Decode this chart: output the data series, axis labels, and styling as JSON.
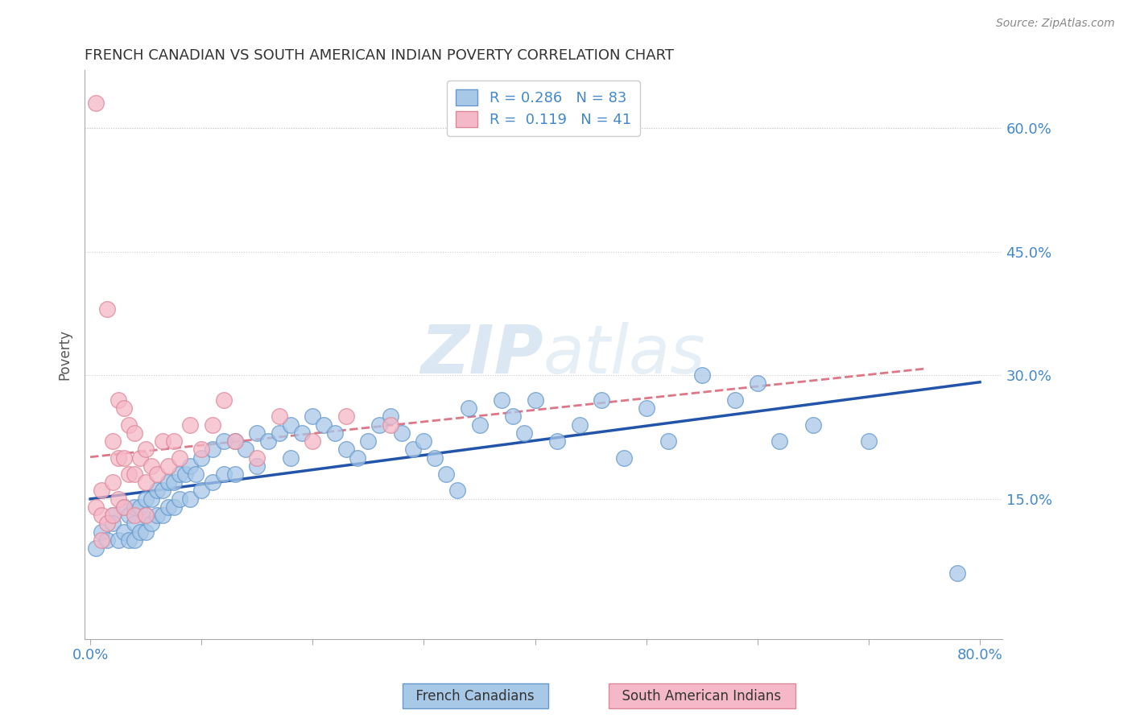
{
  "title": "FRENCH CANADIAN VS SOUTH AMERICAN INDIAN POVERTY CORRELATION CHART",
  "source_text": "Source: ZipAtlas.com",
  "ylabel": "Poverty",
  "xlabel_ticks_edge": [
    "0.0%",
    "80.0%"
  ],
  "xlabel_tick_positions": [
    0.0,
    0.1,
    0.2,
    0.3,
    0.4,
    0.5,
    0.6,
    0.7,
    0.8
  ],
  "ylabel_ticks": [
    "15.0%",
    "30.0%",
    "45.0%",
    "60.0%"
  ],
  "ylabel_vals": [
    0.15,
    0.3,
    0.45,
    0.6
  ],
  "xlim": [
    -0.005,
    0.82
  ],
  "ylim": [
    -0.02,
    0.67
  ],
  "watermark_zip": "ZIP",
  "watermark_atlas": "atlas",
  "blue_R": 0.286,
  "blue_N": 83,
  "pink_R": 0.119,
  "pink_N": 41,
  "blue_color": "#A8C8E8",
  "blue_edge_color": "#6699CC",
  "blue_line_color": "#2255AA",
  "pink_color": "#F5B8C8",
  "pink_edge_color": "#DD8899",
  "pink_line_color": "#DD7788",
  "legend_label_blue": "French Canadians",
  "legend_label_pink": "South American Indians",
  "title_color": "#333333",
  "axis_label_color": "#4488CC",
  "grid_color": "#CCCCCC",
  "background_color": "#FFFFFF",
  "blue_scatter_x": [
    0.005,
    0.01,
    0.015,
    0.02,
    0.02,
    0.025,
    0.03,
    0.03,
    0.035,
    0.035,
    0.04,
    0.04,
    0.04,
    0.045,
    0.045,
    0.05,
    0.05,
    0.05,
    0.055,
    0.055,
    0.06,
    0.06,
    0.065,
    0.065,
    0.07,
    0.07,
    0.075,
    0.075,
    0.08,
    0.08,
    0.085,
    0.09,
    0.09,
    0.095,
    0.1,
    0.1,
    0.11,
    0.11,
    0.12,
    0.12,
    0.13,
    0.13,
    0.14,
    0.15,
    0.15,
    0.16,
    0.17,
    0.18,
    0.18,
    0.19,
    0.2,
    0.21,
    0.22,
    0.23,
    0.24,
    0.25,
    0.26,
    0.27,
    0.28,
    0.29,
    0.3,
    0.31,
    0.32,
    0.33,
    0.34,
    0.35,
    0.37,
    0.38,
    0.39,
    0.4,
    0.42,
    0.44,
    0.46,
    0.48,
    0.5,
    0.52,
    0.55,
    0.58,
    0.6,
    0.62,
    0.65,
    0.7,
    0.78
  ],
  "blue_scatter_y": [
    0.09,
    0.11,
    0.1,
    0.13,
    0.12,
    0.1,
    0.14,
    0.11,
    0.13,
    0.1,
    0.14,
    0.12,
    0.1,
    0.14,
    0.11,
    0.15,
    0.13,
    0.11,
    0.15,
    0.12,
    0.16,
    0.13,
    0.16,
    0.13,
    0.17,
    0.14,
    0.17,
    0.14,
    0.18,
    0.15,
    0.18,
    0.19,
    0.15,
    0.18,
    0.2,
    0.16,
    0.21,
    0.17,
    0.22,
    0.18,
    0.22,
    0.18,
    0.21,
    0.23,
    0.19,
    0.22,
    0.23,
    0.24,
    0.2,
    0.23,
    0.25,
    0.24,
    0.23,
    0.21,
    0.2,
    0.22,
    0.24,
    0.25,
    0.23,
    0.21,
    0.22,
    0.2,
    0.18,
    0.16,
    0.26,
    0.24,
    0.27,
    0.25,
    0.23,
    0.27,
    0.22,
    0.24,
    0.27,
    0.2,
    0.26,
    0.22,
    0.3,
    0.27,
    0.29,
    0.22,
    0.24,
    0.22,
    0.06
  ],
  "pink_scatter_x": [
    0.005,
    0.005,
    0.01,
    0.01,
    0.01,
    0.015,
    0.015,
    0.02,
    0.02,
    0.02,
    0.025,
    0.025,
    0.025,
    0.03,
    0.03,
    0.03,
    0.035,
    0.035,
    0.04,
    0.04,
    0.04,
    0.045,
    0.05,
    0.05,
    0.05,
    0.055,
    0.06,
    0.065,
    0.07,
    0.075,
    0.08,
    0.09,
    0.1,
    0.11,
    0.12,
    0.13,
    0.15,
    0.17,
    0.2,
    0.23,
    0.27
  ],
  "pink_scatter_y": [
    0.63,
    0.14,
    0.16,
    0.13,
    0.1,
    0.38,
    0.12,
    0.22,
    0.17,
    0.13,
    0.27,
    0.2,
    0.15,
    0.26,
    0.2,
    0.14,
    0.24,
    0.18,
    0.23,
    0.18,
    0.13,
    0.2,
    0.21,
    0.17,
    0.13,
    0.19,
    0.18,
    0.22,
    0.19,
    0.22,
    0.2,
    0.24,
    0.21,
    0.24,
    0.27,
    0.22,
    0.2,
    0.25,
    0.22,
    0.25,
    0.24
  ]
}
